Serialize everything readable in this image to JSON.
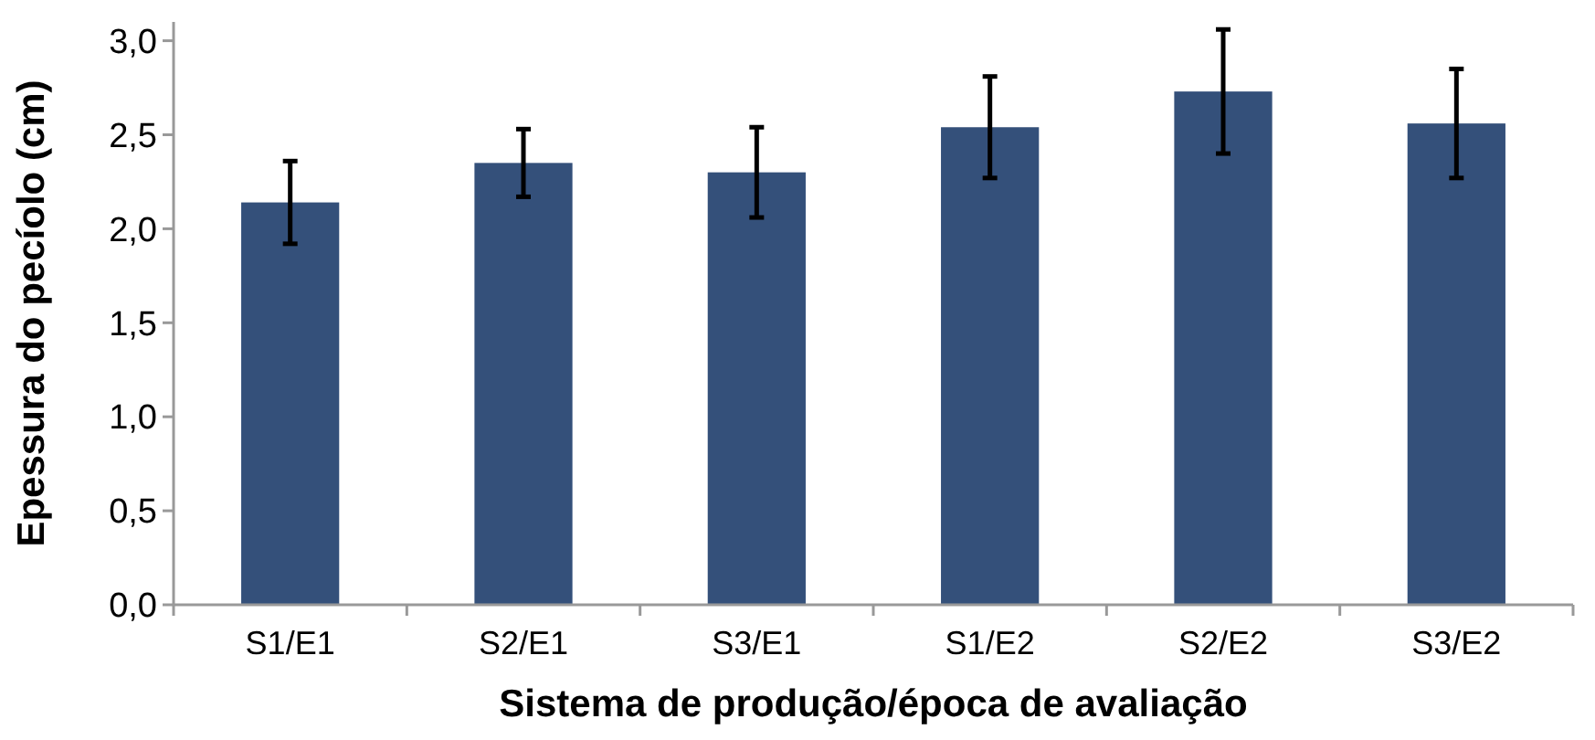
{
  "chart_data": {
    "type": "bar",
    "xlabel": "Sistema de produção/época de avaliação",
    "ylabel": "Epessura do pecíolo (cm)",
    "categories": [
      "S1/E1",
      "S2/E1",
      "S3/E1",
      "S1/E2",
      "S2/E2",
      "S3/E2"
    ],
    "values": [
      2.14,
      2.35,
      2.3,
      2.54,
      2.73,
      2.56
    ],
    "errors": [
      0.22,
      0.18,
      0.24,
      0.27,
      0.33,
      0.29
    ],
    "color": "#34507a",
    "ylim": [
      0,
      3.1
    ],
    "yticks": [
      {
        "value": 0,
        "label": "0,0"
      },
      {
        "value": 0.5,
        "label": "0,5"
      },
      {
        "value": 1,
        "label": "1,0"
      },
      {
        "value": 1.5,
        "label": "1,5"
      },
      {
        "value": 2,
        "label": "2,0"
      },
      {
        "value": 2.5,
        "label": "2,5"
      },
      {
        "value": 3,
        "label": "3,0"
      }
    ],
    "grid": false
  }
}
